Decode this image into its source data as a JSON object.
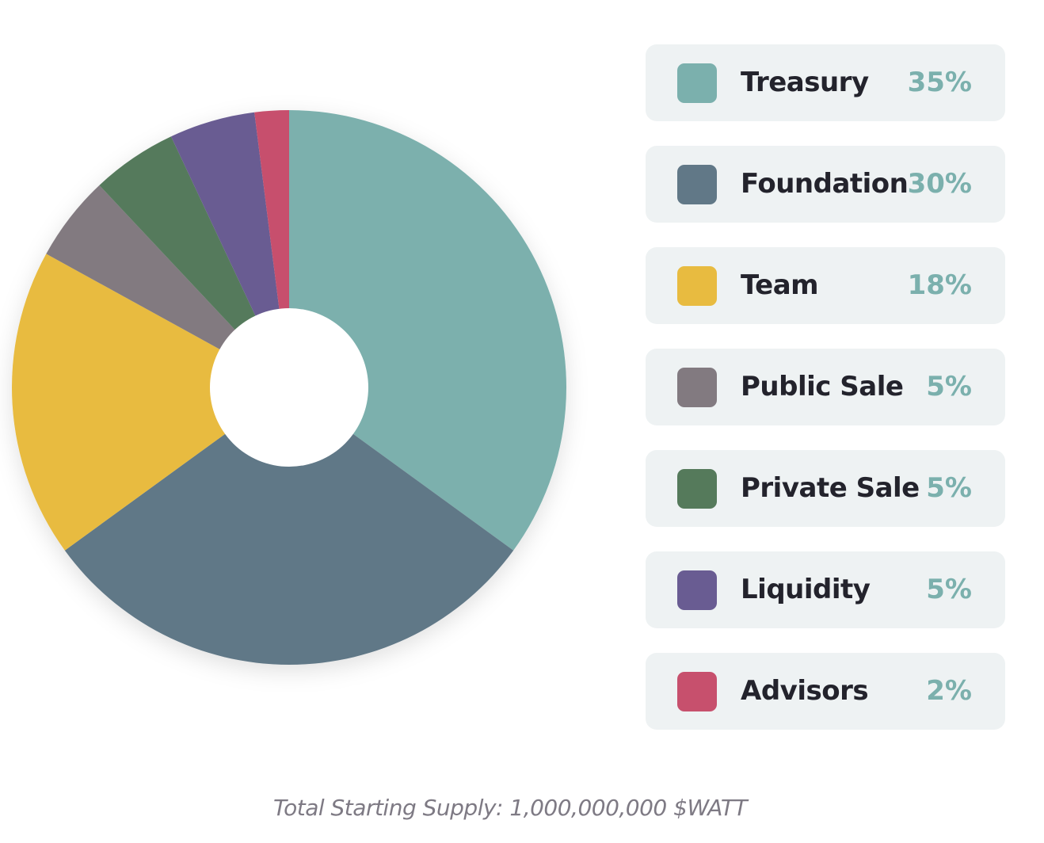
{
  "chart_data": {
    "type": "pie",
    "categories": [
      "Treasury",
      "Foundation",
      "Team",
      "Public Sale",
      "Private Sale",
      "Liquidity",
      "Advisors"
    ],
    "values": [
      35,
      30,
      18,
      5,
      5,
      5,
      2
    ],
    "value_labels": [
      "35%",
      "30%",
      "18%",
      "5%",
      "5%",
      "5%",
      "2%"
    ],
    "colors": [
      "#7bb0ad",
      "#617887",
      "#e8bb40",
      "#827a80",
      "#557a5b",
      "#695c92",
      "#c7506d"
    ],
    "legend_position": "right",
    "donut": true
  },
  "footer": {
    "text": "Total Starting Supply: 1,000,000,000 $WATT"
  }
}
